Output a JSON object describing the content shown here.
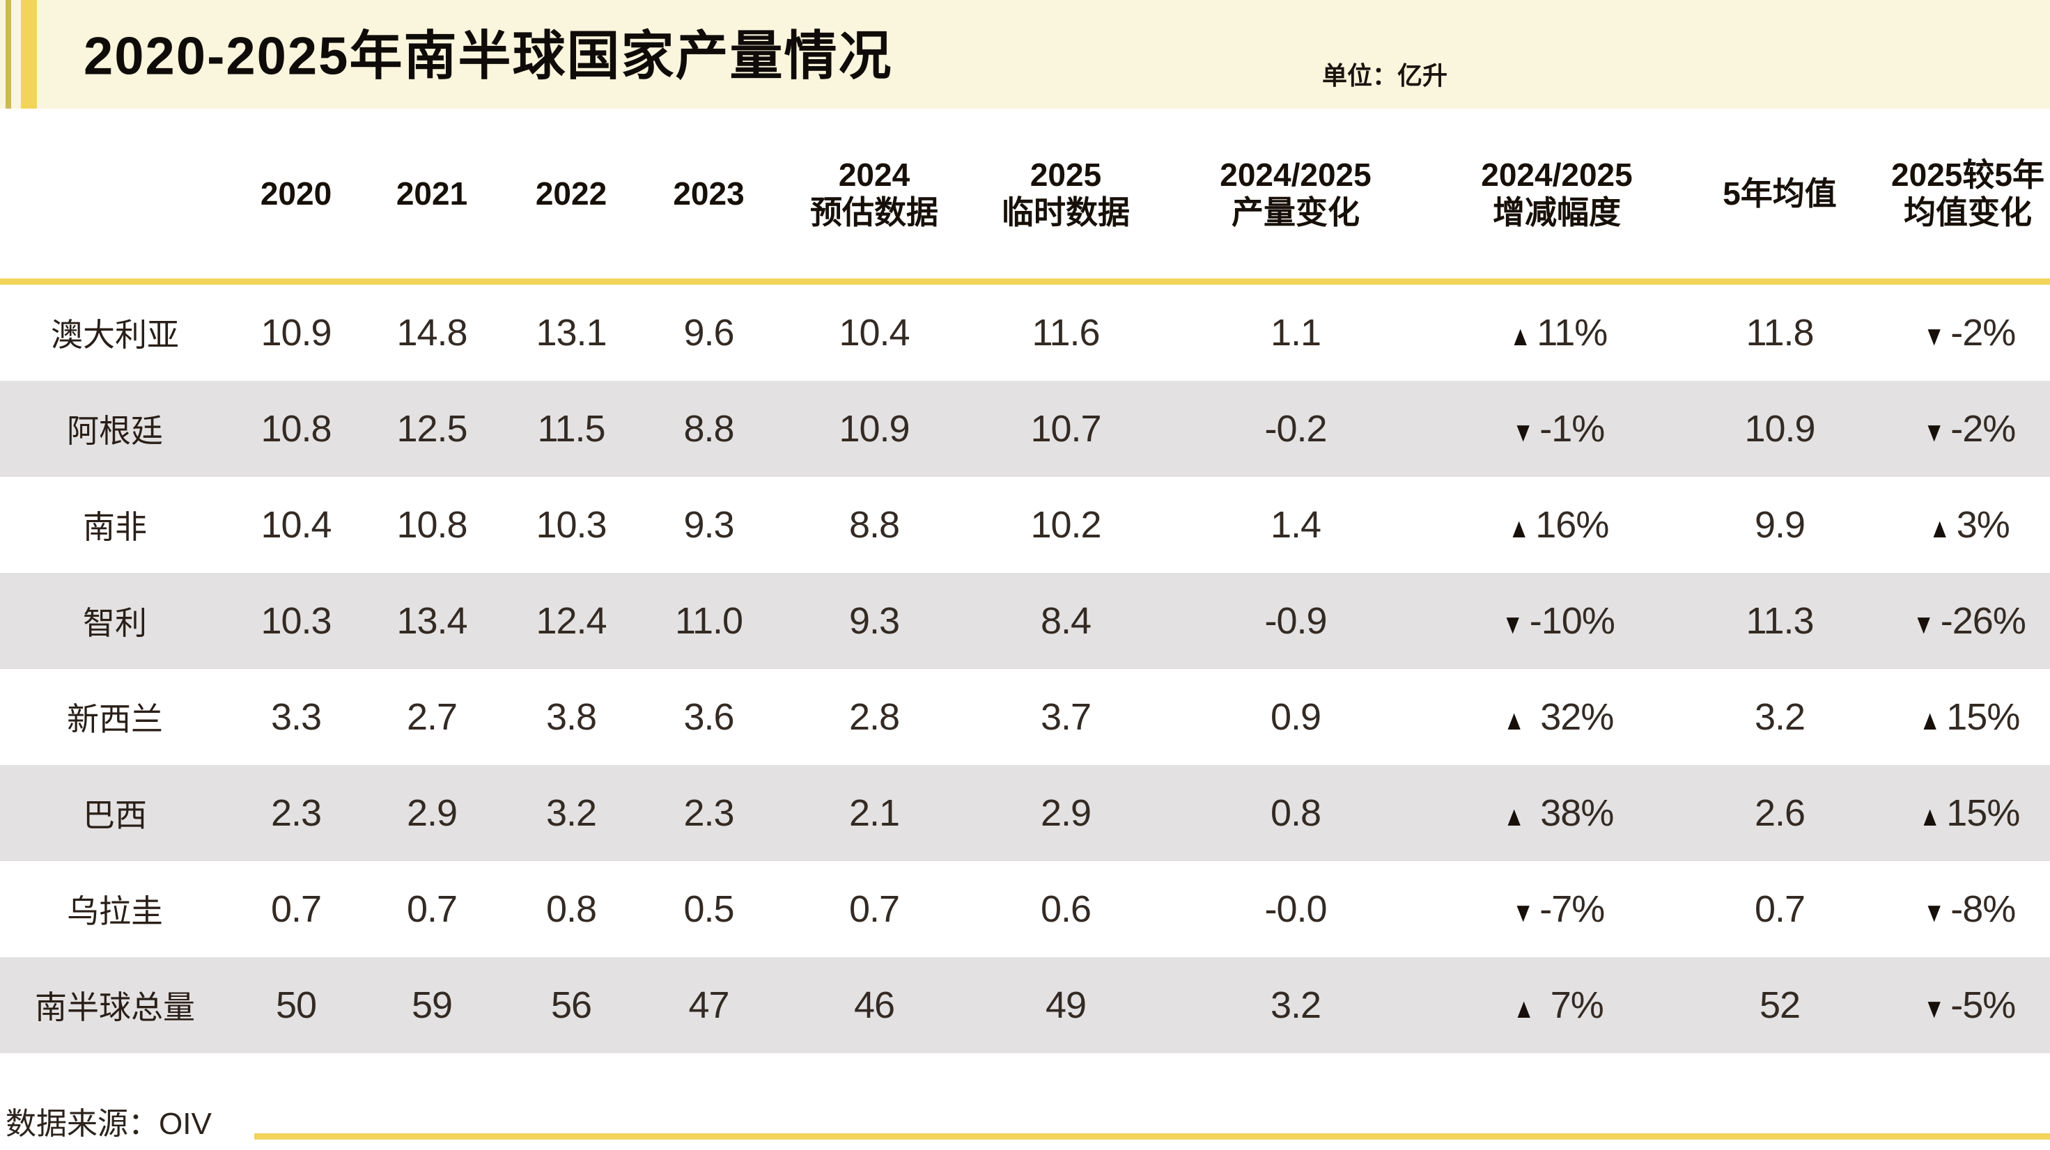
{
  "header": {
    "title": "2020-2025年南半球国家产量情况",
    "unit_label": "单位：亿升"
  },
  "footer": {
    "source_label": "数据来源：OIV"
  },
  "colors": {
    "accent_yellow": "#f2d45a",
    "accent_olive": "#cbb954",
    "header_cream": "#faf5dd",
    "row_gray": "#e3e1e1",
    "text_dark": "#251c16"
  },
  "chart_data": {
    "type": "table",
    "title": "2020-2025年南半球国家产量情况",
    "unit": "亿升",
    "source": "OIV",
    "columns": [
      [
        ""
      ],
      [
        "2020"
      ],
      [
        "2021"
      ],
      [
        "2022"
      ],
      [
        "2023"
      ],
      [
        "2024",
        "预估数据"
      ],
      [
        "2025",
        "临时数据"
      ],
      [
        "2024/2025",
        "产量变化"
      ],
      [
        "2024/2025",
        "增减幅度"
      ],
      [
        "5年均值"
      ],
      [
        "2025较5年",
        "均值变化"
      ]
    ],
    "rows": [
      [
        "澳大利亚",
        "10.9",
        "14.8",
        "13.1",
        "9.6",
        "10.4",
        "11.6",
        "1.1",
        "▲11%",
        "11.8",
        "▼-2%"
      ],
      [
        "阿根廷",
        "10.8",
        "12.5",
        "11.5",
        "8.8",
        "10.9",
        "10.7",
        "-0.2",
        "▼-1%",
        "10.9",
        "▼-2%"
      ],
      [
        "南非",
        "10.4",
        "10.8",
        "10.3",
        "9.3",
        "8.8",
        "10.2",
        "1.4",
        "▲16%",
        "9.9",
        "▲3%"
      ],
      [
        "智利",
        "10.3",
        "13.4",
        "12.4",
        "11.0",
        "9.3",
        "8.4",
        "-0.9",
        "▼-10%",
        "11.3",
        "▼-26%"
      ],
      [
        "新西兰",
        "3.3",
        "2.7",
        "3.8",
        "3.6",
        "2.8",
        "3.7",
        "0.9",
        "▲ 32%",
        "3.2",
        "▲15%"
      ],
      [
        "巴西",
        "2.3",
        "2.9",
        "3.2",
        "2.3",
        "2.1",
        "2.9",
        "0.8",
        "▲ 38%",
        "2.6",
        "▲15%"
      ],
      [
        "乌拉圭",
        "0.7",
        "0.7",
        "0.8",
        "0.5",
        "0.7",
        "0.6",
        "-0.0",
        "▼-7%",
        "0.7",
        "▼-8%"
      ],
      [
        "南半球总量",
        "50",
        "59",
        "56",
        "47",
        "46",
        "49",
        "3.2",
        "▲ 7%",
        "52",
        "▼-5%"
      ]
    ]
  }
}
